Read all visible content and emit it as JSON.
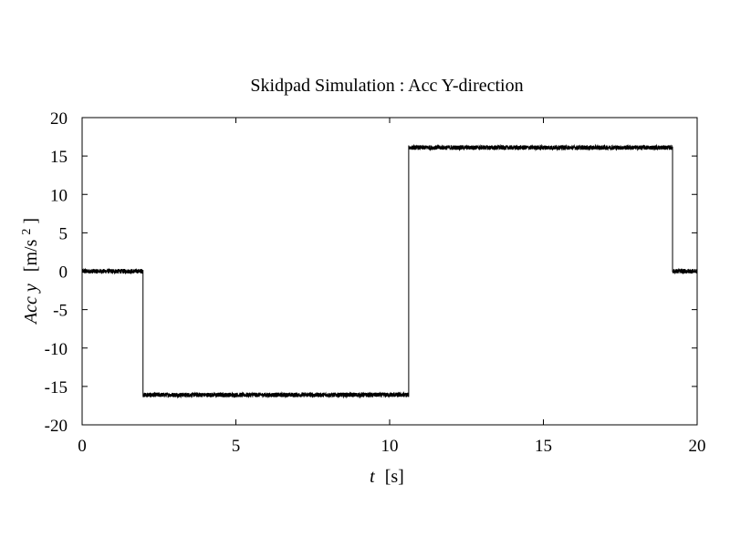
{
  "chart_data": {
    "type": "line",
    "title": "Skidpad Simulation : Acc Y-direction",
    "xlabel": {
      "var": "t",
      "unit": "[s]"
    },
    "ylabel": {
      "var": "Acc y",
      "unit": "[m/s",
      "sup": "2",
      "unit_end": "]"
    },
    "xlim": [
      0,
      20
    ],
    "ylim": [
      -20,
      20
    ],
    "xticks": [
      0,
      5,
      10,
      15,
      20
    ],
    "xtick_labels": [
      "0",
      "5",
      "10",
      "15",
      "20"
    ],
    "yticks": [
      -20,
      -15,
      -10,
      -5,
      0,
      5,
      10,
      15,
      20
    ],
    "ytick_labels": [
      "-20",
      "-15",
      "-10",
      "-5",
      "0",
      "5",
      "10",
      "15",
      "20"
    ],
    "grid": false,
    "legend": "none",
    "line_color": "#000000",
    "noise_amplitude": 0.3,
    "series": [
      {
        "segments": [
          {
            "x_start": 0.0,
            "x_end": 1.98,
            "y": 0.0
          },
          {
            "x_start": 1.98,
            "x_end": 10.62,
            "y": -16.1
          },
          {
            "x_start": 10.62,
            "x_end": 19.2,
            "y": 16.1
          },
          {
            "x_start": 19.2,
            "x_end": 20.0,
            "y": 0.0
          }
        ]
      }
    ]
  }
}
